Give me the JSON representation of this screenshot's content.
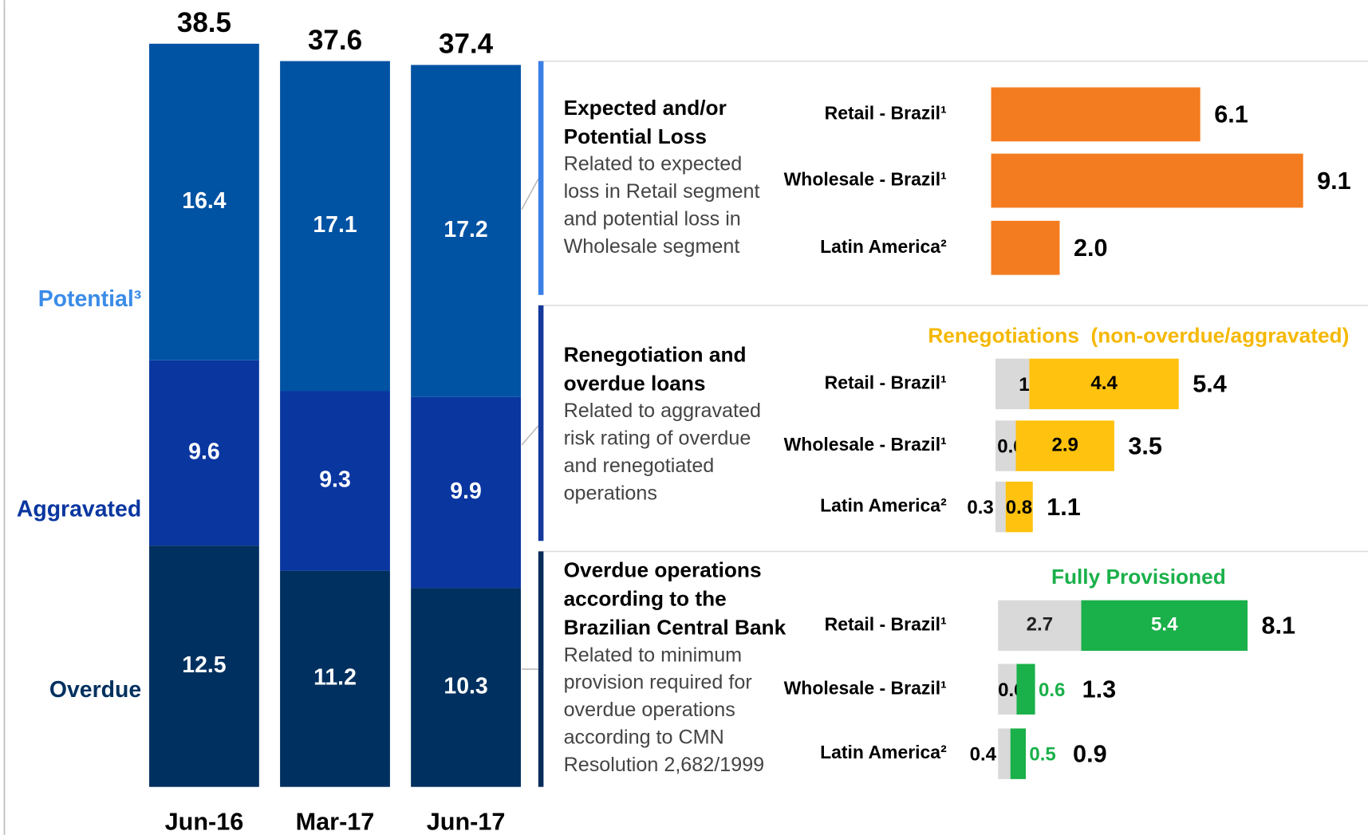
{
  "chart_data": [
    {
      "type": "stacked-column",
      "categories": [
        "Jun-16",
        "Mar-17",
        "Jun-17"
      ],
      "series": [
        {
          "name": "Overdue",
          "color": "#00305f",
          "label_color": "#00305f",
          "values": [
            12.5,
            11.2,
            10.3
          ]
        },
        {
          "name": "Aggravated",
          "color": "#0a36a0",
          "label_color": "#0a36a0",
          "values": [
            9.6,
            9.3,
            9.9
          ]
        },
        {
          "name": "Potential³",
          "color": "#0052a3",
          "label_color": "#3b8ce8",
          "values": [
            16.4,
            17.1,
            17.2
          ]
        }
      ],
      "totals": [
        38.5,
        37.6,
        37.4
      ]
    },
    {
      "type": "horizontal-bar",
      "title": [
        "Expected and/or",
        "Potential Loss"
      ],
      "description": [
        "Related to expected",
        "loss in Retail segment",
        "and potential loss in",
        "Wholesale segment"
      ],
      "accent": "#3a80e6",
      "categories": [
        "Retail - Brazil¹",
        "Wholesale - Brazil¹",
        "Latin America²"
      ],
      "series": [
        {
          "color": "#f47c20",
          "values": [
            6.1,
            9.1,
            2.0
          ]
        }
      ],
      "value_labels": [
        "6.1",
        "9.1",
        "2.0"
      ]
    },
    {
      "type": "horizontal-stacked-bar",
      "title": [
        "Renegotiation and",
        "overdue loans"
      ],
      "description": [
        "Related to aggravated",
        "risk rating of overdue",
        "and renegotiated",
        "operations"
      ],
      "accent": "#15389c",
      "legend_title": "Renegotiations  (non-overdue/aggravated)",
      "legend_color": "#f5b800",
      "categories": [
        "Retail - Brazil¹",
        "Wholesale - Brazil¹",
        "Latin America²"
      ],
      "series": [
        {
          "color": "#d9d9d9",
          "values": [
            1.0,
            0.6,
            0.3
          ]
        },
        {
          "color": "#ffc20e",
          "label_color": "#000000",
          "values": [
            4.4,
            2.9,
            0.8
          ]
        }
      ],
      "totals": [
        5.4,
        3.5,
        1.1
      ]
    },
    {
      "type": "horizontal-stacked-bar",
      "title": [
        "Overdue operations",
        "according to the",
        "Brazilian Central Bank"
      ],
      "description": [
        "Related to minimum",
        "provision required  for",
        "overdue operations",
        "according to CMN",
        "Resolution 2,682/1999"
      ],
      "accent": "#0a2c5a",
      "legend_title": "Fully Provisioned",
      "legend_color": "#1ab04a",
      "categories": [
        "Retail - Brazil¹",
        "Wholesale - Brazil¹",
        "Latin America²"
      ],
      "series": [
        {
          "color": "#d9d9d9",
          "values": [
            2.7,
            0.6,
            0.4
          ]
        },
        {
          "color": "#1ab04a",
          "label_color": "#1ab04a",
          "values": [
            5.4,
            0.6,
            0.5
          ]
        }
      ],
      "totals": [
        8.1,
        1.3,
        0.9
      ]
    }
  ]
}
